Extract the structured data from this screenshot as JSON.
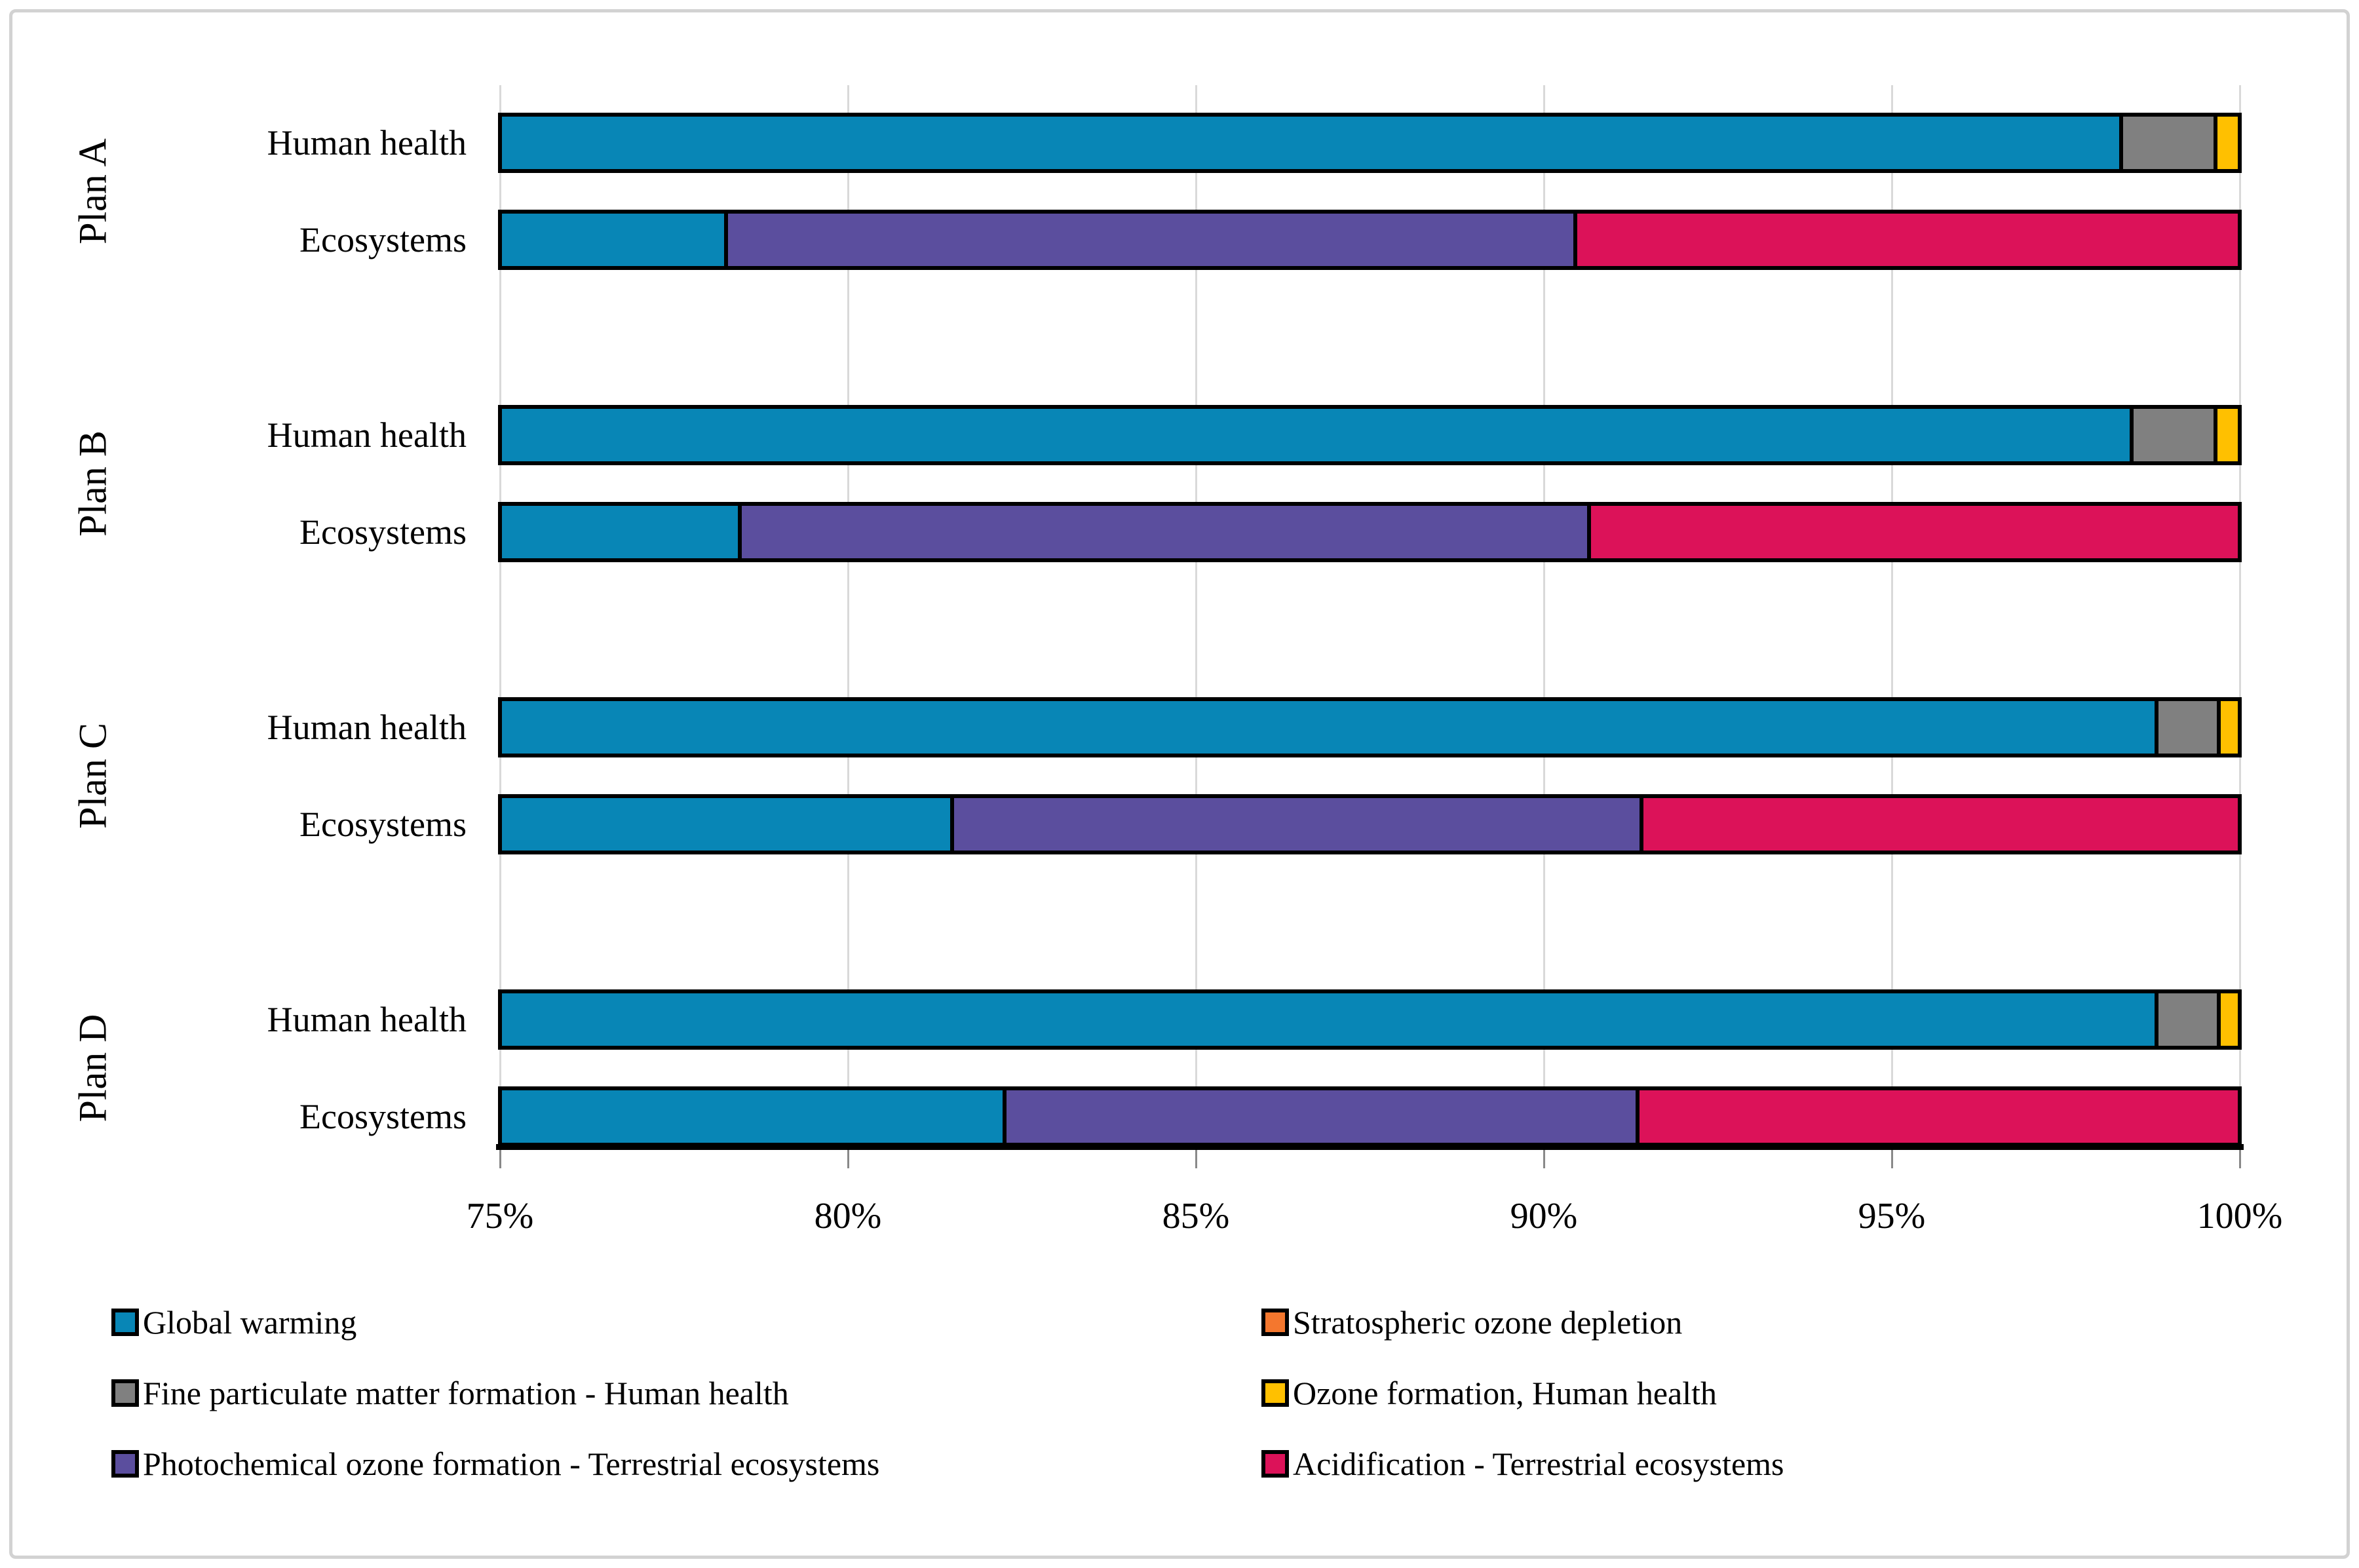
{
  "chart_data": {
    "type": "bar",
    "subtype": "horizontal-stacked-percent",
    "title": "",
    "x_axis": {
      "min": 75,
      "max": 100,
      "step": 5,
      "tick_labels": [
        "75%",
        "80%",
        "85%",
        "90%",
        "95%",
        "100%"
      ],
      "grid": true
    },
    "series": [
      {
        "name": "Global warming",
        "color": "#0886B6"
      },
      {
        "name": "Stratospheric ozone depletion",
        "color": "#F4772E"
      },
      {
        "name": "Fine particulate matter formation - Human health",
        "color": "#808080"
      },
      {
        "name": "Ozone formation, Human health",
        "color": "#FFC000"
      },
      {
        "name": "Photochemical ozone formation - Terrestrial ecosystems",
        "color": "#5B4E9E"
      },
      {
        "name": "Acidification - Terrestrial ecosystems",
        "color": "#DC1259"
      }
    ],
    "groups": [
      {
        "plan": "Plan A",
        "bars": [
          {
            "category": "Human health",
            "segments": [
              {
                "series": "Global warming",
                "end": 98.3
              },
              {
                "series": "Fine particulate matter formation - Human health",
                "end": 99.65
              },
              {
                "series": "Ozone formation, Human health",
                "end": 100
              }
            ]
          },
          {
            "category": "Ecosystems",
            "segments": [
              {
                "series": "Global warming",
                "end": 78.25
              },
              {
                "series": "Photochemical ozone formation - Terrestrial ecosystems",
                "end": 90.45
              },
              {
                "series": "Acidification - Terrestrial ecosystems",
                "end": 100
              }
            ]
          }
        ]
      },
      {
        "plan": "Plan B",
        "bars": [
          {
            "category": "Human health",
            "segments": [
              {
                "series": "Global warming",
                "end": 98.45
              },
              {
                "series": "Fine particulate matter formation - Human health",
                "end": 99.65
              },
              {
                "series": "Ozone formation, Human health",
                "end": 100
              }
            ]
          },
          {
            "category": "Ecosystems",
            "segments": [
              {
                "series": "Global warming",
                "end": 78.45
              },
              {
                "series": "Photochemical ozone formation - Terrestrial ecosystems",
                "end": 90.65
              },
              {
                "series": "Acidification - Terrestrial ecosystems",
                "end": 100
              }
            ]
          }
        ]
      },
      {
        "plan": "Plan C",
        "bars": [
          {
            "category": "Human health",
            "segments": [
              {
                "series": "Global warming",
                "end": 98.8
              },
              {
                "series": "Fine particulate matter formation - Human health",
                "end": 99.7
              },
              {
                "series": "Ozone formation, Human health",
                "end": 100
              }
            ]
          },
          {
            "category": "Ecosystems",
            "segments": [
              {
                "series": "Global warming",
                "end": 81.5
              },
              {
                "series": "Photochemical ozone formation - Terrestrial ecosystems",
                "end": 91.4
              },
              {
                "series": "Acidification - Terrestrial ecosystems",
                "end": 100
              }
            ]
          }
        ]
      },
      {
        "plan": "Plan D",
        "bars": [
          {
            "category": "Human health",
            "segments": [
              {
                "series": "Global warming",
                "end": 98.8
              },
              {
                "series": "Fine particulate matter formation - Human health",
                "end": 99.7
              },
              {
                "series": "Ozone formation, Human health",
                "end": 100
              }
            ]
          },
          {
            "category": "Ecosystems",
            "segments": [
              {
                "series": "Global warming",
                "end": 82.25
              },
              {
                "series": "Photochemical ozone formation - Terrestrial ecosystems",
                "end": 91.35
              },
              {
                "series": "Acidification - Terrestrial ecosystems",
                "end": 100
              }
            ]
          }
        ]
      }
    ],
    "legend": {
      "position": "bottom",
      "columns": 2,
      "order": [
        "Global warming",
        "Stratospheric ozone depletion",
        "Fine particulate matter formation - Human health",
        "Ozone formation, Human health",
        "Photochemical ozone formation - Terrestrial ecosystems",
        "Acidification - Terrestrial ecosystems"
      ]
    },
    "style_colors": {
      "gridline": "#d9d9d9",
      "axis_line": "#000000",
      "tick": "#898989",
      "frame_border": "#d2d2d2",
      "segment_border": "#000000"
    }
  }
}
